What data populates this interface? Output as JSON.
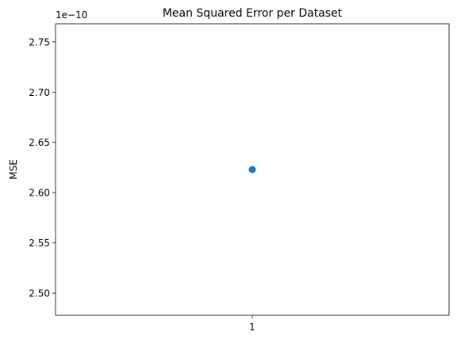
{
  "chart_data": {
    "type": "scatter",
    "title": "Mean Squared Error per Dataset",
    "xlabel": "",
    "ylabel": "MSE",
    "y_offset_label": "1e−10",
    "x_ticks": [
      {
        "value": 1,
        "label": "1"
      }
    ],
    "y_ticks": [
      {
        "value": 2.5,
        "label": "2.50"
      },
      {
        "value": 2.55,
        "label": "2.55"
      },
      {
        "value": 2.6,
        "label": "2.60"
      },
      {
        "value": 2.65,
        "label": "2.65"
      },
      {
        "value": 2.7,
        "label": "2.70"
      },
      {
        "value": 2.75,
        "label": "2.75"
      }
    ],
    "xlim": [
      0.0,
      2.0
    ],
    "ylim": [
      2.478,
      2.768
    ],
    "y_scale_factor": 1e-10,
    "points": [
      {
        "x": 1,
        "y": 2.623
      }
    ],
    "grid": false,
    "colors": {
      "marker": "#1f77b4",
      "axes": "#000000"
    }
  }
}
